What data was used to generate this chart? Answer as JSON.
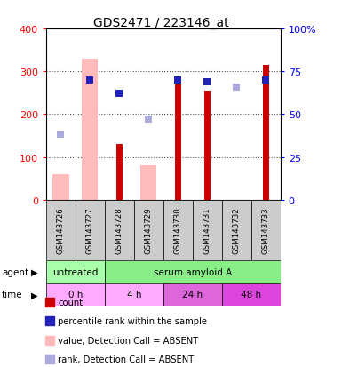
{
  "title": "GDS2471 / 223146_at",
  "samples": [
    "GSM143726",
    "GSM143727",
    "GSM143728",
    "GSM143729",
    "GSM143730",
    "GSM143731",
    "GSM143732",
    "GSM143733"
  ],
  "count_values": [
    null,
    null,
    130,
    null,
    270,
    255,
    null,
    315
  ],
  "count_absent": [
    60,
    330,
    null,
    80,
    null,
    null,
    null,
    null
  ],
  "rank_present_pct": [
    null,
    70,
    62,
    null,
    70,
    69,
    null,
    70
  ],
  "rank_absent_pct": [
    38,
    null,
    null,
    47,
    null,
    null,
    66,
    null
  ],
  "ylim_left": [
    0,
    400
  ],
  "ylim_right": [
    0,
    100
  ],
  "yticks_left": [
    0,
    100,
    200,
    300,
    400
  ],
  "yticks_right": [
    0,
    25,
    50,
    75,
    100
  ],
  "ytick_labels_right": [
    "0",
    "25",
    "50",
    "75",
    "100%"
  ],
  "count_color": "#cc0000",
  "count_absent_color": "#ffbbbb",
  "rank_present_color": "#2222bb",
  "rank_absent_color": "#aaaadd",
  "plot_bg": "#ffffff",
  "grid_color": "#555555",
  "agent_untreated_color": "#aaffaa",
  "agent_serum_color": "#88ee88",
  "time_0h_color": "#ffaaff",
  "time_4h_color": "#ffaaff",
  "time_24h_color": "#dd66dd",
  "time_48h_color": "#dd44dd",
  "sample_box_color": "#cccccc"
}
